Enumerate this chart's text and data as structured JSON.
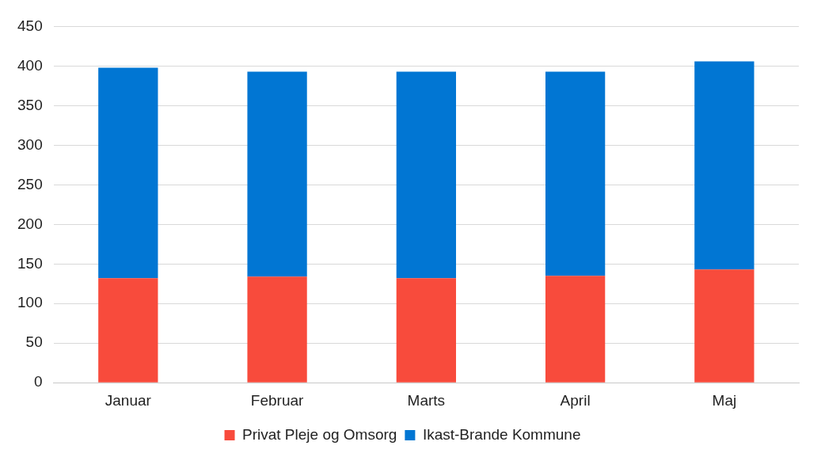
{
  "chart_data": {
    "type": "bar",
    "stacked": true,
    "categories": [
      "Januar",
      "Februar",
      "Marts",
      "April",
      "Maj"
    ],
    "series": [
      {
        "name": "Privat Pleje og Omsorg",
        "color": "#f84b3c",
        "values": [
          132,
          134,
          132,
          135,
          143
        ]
      },
      {
        "name": "Ikast-Brande Kommune",
        "color": "#0176d3",
        "values": [
          266,
          259,
          261,
          258,
          263
        ]
      }
    ],
    "ylim": [
      0,
      450
    ],
    "yticks": [
      0,
      50,
      100,
      150,
      200,
      250,
      300,
      350,
      400,
      450
    ],
    "grid": "y",
    "legend": "bottom"
  }
}
